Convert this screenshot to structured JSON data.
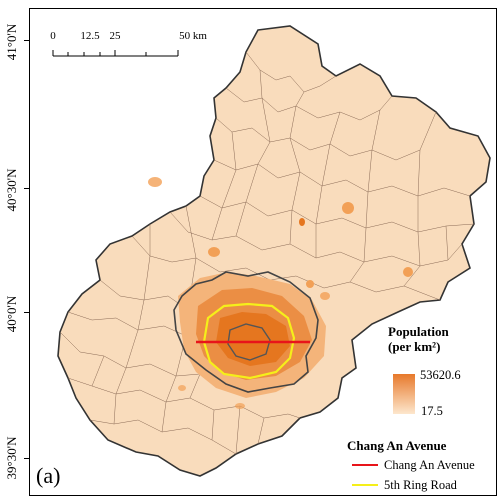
{
  "panel_label": "(a)",
  "latitude_labels": [
    "41°0'N",
    "40°30'N",
    "40°0'N",
    "39°30'N"
  ],
  "scale_bar": {
    "labels": [
      "0",
      "12.5",
      "25",
      "50 km"
    ],
    "values_km": [
      0,
      12.5,
      25,
      50
    ]
  },
  "population_legend": {
    "title_line1": "Population",
    "title_line2": "(per km²)",
    "max": "53620.6",
    "min": "17.5",
    "color_high": "#e7792b",
    "color_low": "#fde7cd"
  },
  "line_legend": {
    "title": "Chang An Avenue",
    "items": [
      {
        "label": "Chang An Avenue",
        "color": "#e8141a"
      },
      {
        "label": "5th Ring Road",
        "color": "#f5ef1a"
      }
    ]
  },
  "colors": {
    "region_fill": "#f9dcbc",
    "boundary": "#8a6a55",
    "outline": "#333333",
    "dense_core": "#f2a056",
    "densest": "#e5761f",
    "inner_ring": "#555555"
  }
}
